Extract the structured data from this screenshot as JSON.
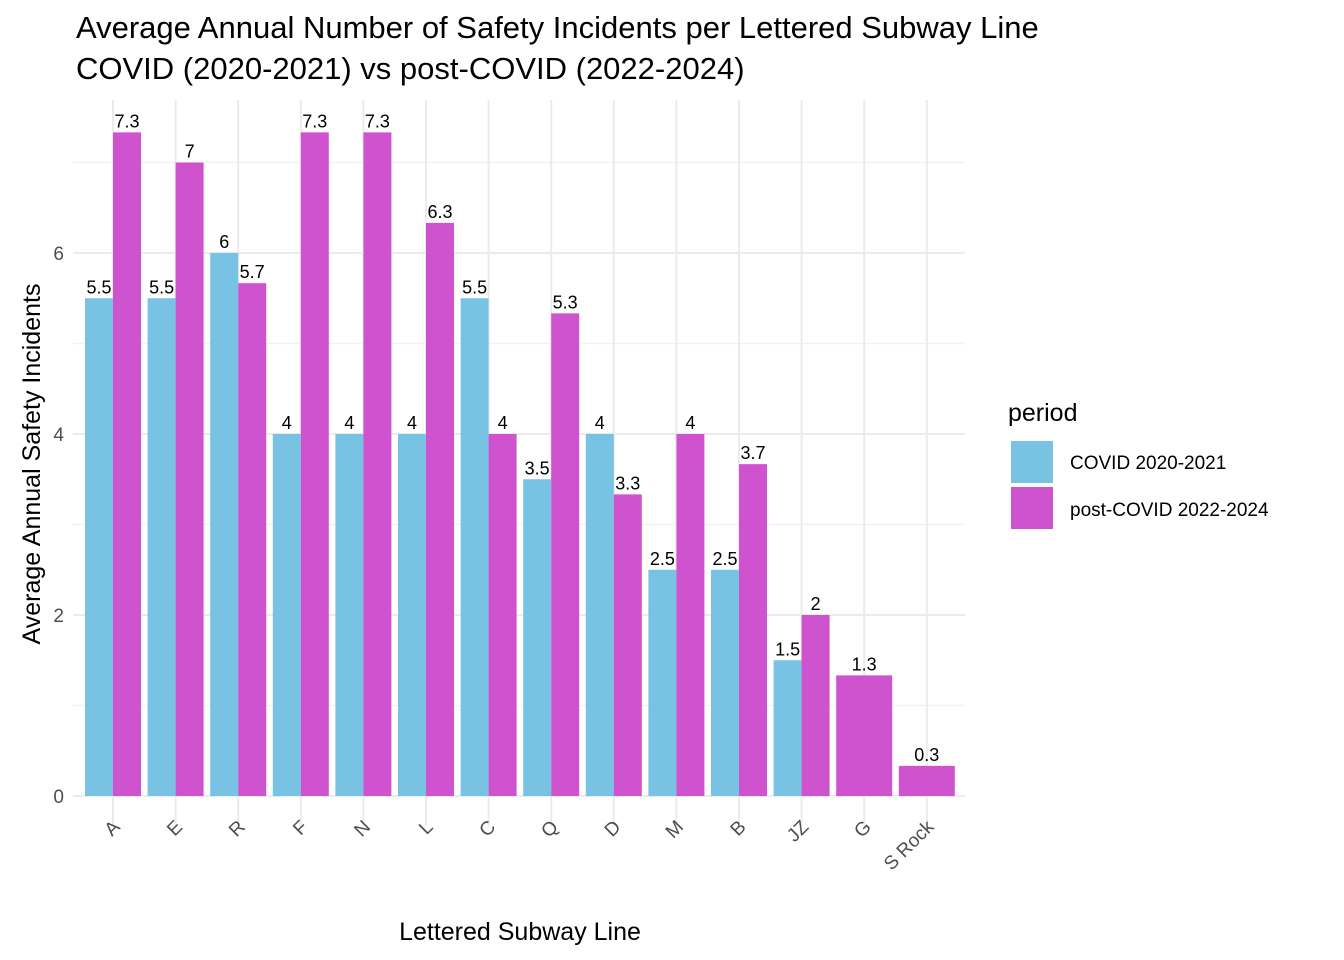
{
  "chart_data": {
    "type": "bar",
    "title": "Average Annual Number of Safety Incidents per Lettered Subway Line",
    "subtitle": "COVID (2020-2021) vs post-COVID (2022-2024)",
    "xlabel": "Lettered Subway Line",
    "ylabel": "Average Annual Safety Incidents",
    "categories": [
      "A",
      "E",
      "R",
      "F",
      "N",
      "L",
      "C",
      "Q",
      "D",
      "M",
      "B",
      "JZ",
      "G",
      "S Rock"
    ],
    "series": [
      {
        "name": "COVID 2020-2021",
        "color": "#78c2e4",
        "values": [
          5.5,
          5.5,
          6,
          4,
          4,
          4,
          5.5,
          3.5,
          4,
          2.5,
          2.5,
          1.5,
          null,
          null
        ],
        "labels": [
          "5.5",
          "5.5",
          "6",
          "4",
          "4",
          "4",
          "5.5",
          "3.5",
          "4",
          "2.5",
          "2.5",
          "1.5",
          "",
          ""
        ]
      },
      {
        "name": "post-COVID 2022-2024",
        "color": "#cf53cf",
        "values": [
          7.333,
          7,
          5.667,
          7.333,
          7.333,
          6.333,
          4,
          5.333,
          3.333,
          4,
          3.667,
          2,
          1.333,
          0.333
        ],
        "labels": [
          "7.3",
          "7",
          "5.7",
          "7.3",
          "7.3",
          "6.3",
          "4",
          "5.3",
          "3.3",
          "4",
          "3.7",
          "2",
          "1.3",
          "0.3"
        ]
      }
    ],
    "ylim": [
      0,
      7.7
    ],
    "yticks": [
      0,
      2,
      4,
      6
    ],
    "ytick_labels": [
      "0",
      "2",
      "4",
      "6"
    ],
    "grid": true,
    "legend": {
      "title": "period",
      "placement": "right"
    }
  }
}
